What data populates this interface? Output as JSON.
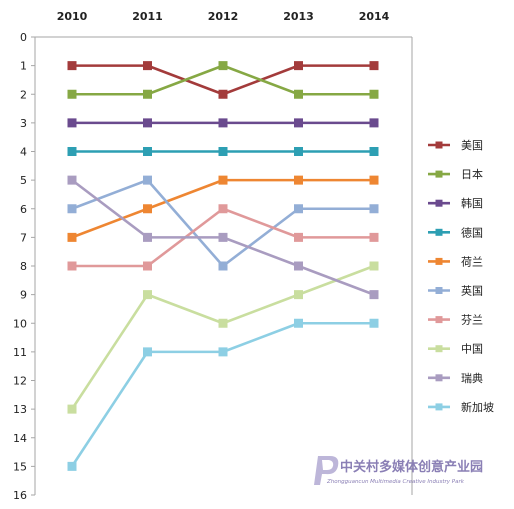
{
  "chart_data": {
    "type": "line",
    "title": "",
    "xlabel": "",
    "ylabel": "",
    "x": [
      "2010",
      "2011",
      "2012",
      "2013",
      "2014"
    ],
    "ylim": [
      0,
      16
    ],
    "y_inverted": true,
    "y_ticks": [
      0,
      1,
      2,
      3,
      4,
      5,
      6,
      7,
      8,
      9,
      10,
      11,
      12,
      13,
      14,
      15,
      16
    ],
    "x_axis_position": "top",
    "grid": false,
    "legend_position": "right",
    "series": [
      {
        "name": "美国",
        "color": "#a33b3b",
        "values": [
          1,
          1,
          2,
          1,
          1
        ]
      },
      {
        "name": "日本",
        "color": "#86a844",
        "values": [
          2,
          2,
          1,
          2,
          2
        ]
      },
      {
        "name": "韩国",
        "color": "#6a4a8e",
        "values": [
          3,
          3,
          3,
          3,
          3
        ]
      },
      {
        "name": "德国",
        "color": "#2d9fb3",
        "values": [
          4,
          4,
          4,
          4,
          4
        ]
      },
      {
        "name": "荷兰",
        "color": "#ee8632",
        "values": [
          7,
          6,
          5,
          5,
          5
        ]
      },
      {
        "name": "英国",
        "color": "#93aed6",
        "values": [
          6,
          5,
          8,
          6,
          6
        ]
      },
      {
        "name": "芬兰",
        "color": "#e0999a",
        "values": [
          8,
          8,
          6,
          7,
          7
        ]
      },
      {
        "name": "中国",
        "color": "#c9de9f",
        "values": [
          13,
          9,
          10,
          9,
          8
        ]
      },
      {
        "name": "瑞典",
        "color": "#a99cc0",
        "values": [
          5,
          7,
          7,
          8,
          9
        ]
      },
      {
        "name": "新加坡",
        "color": "#8dcfe4",
        "values": [
          15,
          11,
          11,
          10,
          10
        ]
      }
    ]
  },
  "watermark": {
    "title": "中关村多媒体创意产业园",
    "subtitle": "Zhongguancun Multimedia Creative Industry Park",
    "color": "#8a7fb5"
  }
}
